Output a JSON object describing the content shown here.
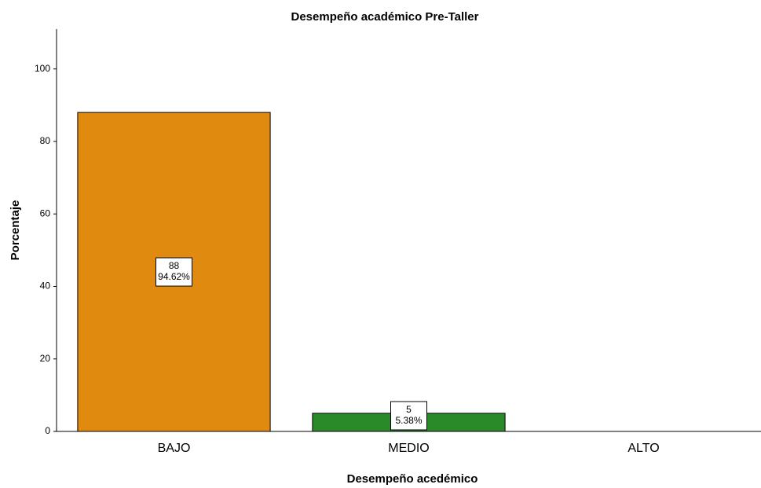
{
  "chart_data": {
    "type": "bar",
    "title": "Desempeño académico Pre-Taller",
    "x_label": "Desempeño acedémico",
    "y_label": "Porcentaje",
    "categories": [
      "BAJO",
      "MEDIO",
      "ALTO"
    ],
    "values": [
      88,
      5,
      null
    ],
    "value_labels": [
      "88",
      "5",
      null
    ],
    "percent_labels": [
      "94.62%",
      "5.38%",
      null
    ],
    "colors": [
      "#e08a10",
      "#2a8a2a",
      null
    ],
    "ylim": [
      0,
      111
    ],
    "yticks": [
      0,
      20,
      40,
      60,
      80,
      100
    ],
    "grid": false
  }
}
